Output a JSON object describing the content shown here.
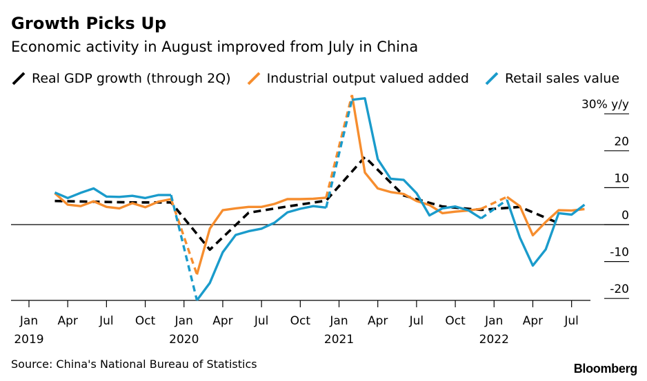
{
  "header": {
    "title": "Growth Picks Up",
    "subtitle": "Economic activity in August improved from July in China"
  },
  "legend": [
    {
      "label": "Real GDP growth (through 2Q)",
      "color": "#000000",
      "style": "dashed"
    },
    {
      "label": "Industrial output valued added",
      "color": "#f68d2e",
      "style": "solid"
    },
    {
      "label": "Retail sales value",
      "color": "#1a9bcb",
      "style": "solid"
    }
  ],
  "footer": {
    "source": "Source: China's National Bureau of Statistics",
    "brand": "Bloomberg"
  },
  "chart_data": {
    "type": "line",
    "x_unit": "month",
    "x_range": [
      "2019-01",
      "2022-10"
    ],
    "ylim": [
      -21,
      31
    ],
    "y_ticks": [
      {
        "value": 30,
        "label": "30% y/y"
      },
      {
        "value": 20,
        "label": "20"
      },
      {
        "value": 10,
        "label": "10"
      },
      {
        "value": 0,
        "label": "0"
      },
      {
        "value": -10,
        "label": "-10"
      },
      {
        "value": -20,
        "label": "-20"
      }
    ],
    "x_ticks": [
      {
        "month": "2019-01",
        "label": "Jan",
        "year": "2019"
      },
      {
        "month": "2019-04",
        "label": "Apr"
      },
      {
        "month": "2019-07",
        "label": "Jul"
      },
      {
        "month": "2019-10",
        "label": "Oct"
      },
      {
        "month": "2020-01",
        "label": "Jan",
        "year": "2020"
      },
      {
        "month": "2020-04",
        "label": "Apr"
      },
      {
        "month": "2020-07",
        "label": "Jul"
      },
      {
        "month": "2020-10",
        "label": "Oct"
      },
      {
        "month": "2021-01",
        "label": "Jan",
        "year": "2021"
      },
      {
        "month": "2021-04",
        "label": "Apr"
      },
      {
        "month": "2021-07",
        "label": "Jul"
      },
      {
        "month": "2021-10",
        "label": "Oct"
      },
      {
        "month": "2022-01",
        "label": "Jan",
        "year": "2022"
      },
      {
        "month": "2022-04",
        "label": "Apr"
      },
      {
        "month": "2022-07",
        "label": "Jul"
      }
    ],
    "zero_line": true,
    "grid": false,
    "series": [
      {
        "name": "Real GDP growth (through 2Q)",
        "color": "#000000",
        "dashed": true,
        "points": [
          [
            "2019-03",
            6.4
          ],
          [
            "2019-06",
            6.2
          ],
          [
            "2019-09",
            6.0
          ],
          [
            "2019-12",
            6.0
          ],
          [
            "2020-03",
            -6.8
          ],
          [
            "2020-06",
            3.2
          ],
          [
            "2020-09",
            4.9
          ],
          [
            "2020-12",
            6.5
          ],
          [
            "2021-03",
            18.3
          ],
          [
            "2021-06",
            7.9
          ],
          [
            "2021-09",
            4.9
          ],
          [
            "2021-12",
            4.0
          ],
          [
            "2022-03",
            4.8
          ],
          [
            "2022-06",
            0.4
          ]
        ]
      },
      {
        "name": "Industrial output valued added",
        "color": "#f68d2e",
        "dashed": false,
        "dashed_months": [
          "2020-01",
          "2020-02",
          "2021-01",
          "2021-02"
        ],
        "points": [
          [
            "2019-03",
            8.5
          ],
          [
            "2019-04",
            5.4
          ],
          [
            "2019-05",
            5.0
          ],
          [
            "2019-06",
            6.3
          ],
          [
            "2019-07",
            4.8
          ],
          [
            "2019-08",
            4.4
          ],
          [
            "2019-09",
            5.8
          ],
          [
            "2019-10",
            4.7
          ],
          [
            "2019-11",
            6.2
          ],
          [
            "2019-12",
            6.9
          ],
          [
            "2020-02",
            -13.5
          ],
          [
            "2020-03",
            -1.1
          ],
          [
            "2020-04",
            3.9
          ],
          [
            "2020-05",
            4.4
          ],
          [
            "2020-06",
            4.8
          ],
          [
            "2020-07",
            4.8
          ],
          [
            "2020-08",
            5.6
          ],
          [
            "2020-09",
            6.9
          ],
          [
            "2020-10",
            6.9
          ],
          [
            "2020-11",
            7.0
          ],
          [
            "2020-12",
            7.3
          ],
          [
            "2021-02",
            35.1
          ],
          [
            "2021-03",
            14.1
          ],
          [
            "2021-04",
            9.8
          ],
          [
            "2021-05",
            8.8
          ],
          [
            "2021-06",
            8.3
          ],
          [
            "2021-07",
            6.4
          ],
          [
            "2021-08",
            5.3
          ],
          [
            "2021-09",
            3.1
          ],
          [
            "2021-10",
            3.5
          ],
          [
            "2021-11",
            3.8
          ],
          [
            "2021-12",
            4.3
          ],
          [
            "2022-02",
            7.5
          ],
          [
            "2022-03",
            5.0
          ],
          [
            "2022-04",
            -2.9
          ],
          [
            "2022-05",
            0.7
          ],
          [
            "2022-06",
            3.9
          ],
          [
            "2022-07",
            3.8
          ],
          [
            "2022-08",
            4.2
          ]
        ]
      },
      {
        "name": "Retail sales value",
        "color": "#1a9bcb",
        "dashed": false,
        "dashed_months": [
          "2020-01",
          "2020-02",
          "2021-01",
          "2021-02"
        ],
        "points": [
          [
            "2019-03",
            8.7
          ],
          [
            "2019-04",
            7.2
          ],
          [
            "2019-05",
            8.6
          ],
          [
            "2019-06",
            9.8
          ],
          [
            "2019-07",
            7.6
          ],
          [
            "2019-08",
            7.5
          ],
          [
            "2019-09",
            7.8
          ],
          [
            "2019-10",
            7.2
          ],
          [
            "2019-11",
            8.0
          ],
          [
            "2019-12",
            8.0
          ],
          [
            "2020-02",
            -20.5
          ],
          [
            "2020-03",
            -15.8
          ],
          [
            "2020-04",
            -7.5
          ],
          [
            "2020-05",
            -2.8
          ],
          [
            "2020-06",
            -1.8
          ],
          [
            "2020-07",
            -1.1
          ],
          [
            "2020-08",
            0.5
          ],
          [
            "2020-09",
            3.3
          ],
          [
            "2020-10",
            4.3
          ],
          [
            "2020-11",
            5.0
          ],
          [
            "2020-12",
            4.6
          ],
          [
            "2021-02",
            33.8
          ],
          [
            "2021-03",
            34.2
          ],
          [
            "2021-04",
            17.7
          ],
          [
            "2021-05",
            12.4
          ],
          [
            "2021-06",
            12.1
          ],
          [
            "2021-07",
            8.5
          ],
          [
            "2021-08",
            2.5
          ],
          [
            "2021-09",
            4.4
          ],
          [
            "2021-10",
            4.9
          ],
          [
            "2021-11",
            3.9
          ],
          [
            "2021-12",
            1.7
          ],
          [
            "2022-02",
            6.7
          ],
          [
            "2022-03",
            -3.5
          ],
          [
            "2022-04",
            -11.1
          ],
          [
            "2022-05",
            -6.7
          ],
          [
            "2022-06",
            3.1
          ],
          [
            "2022-07",
            2.7
          ],
          [
            "2022-08",
            5.4
          ]
        ]
      }
    ]
  }
}
